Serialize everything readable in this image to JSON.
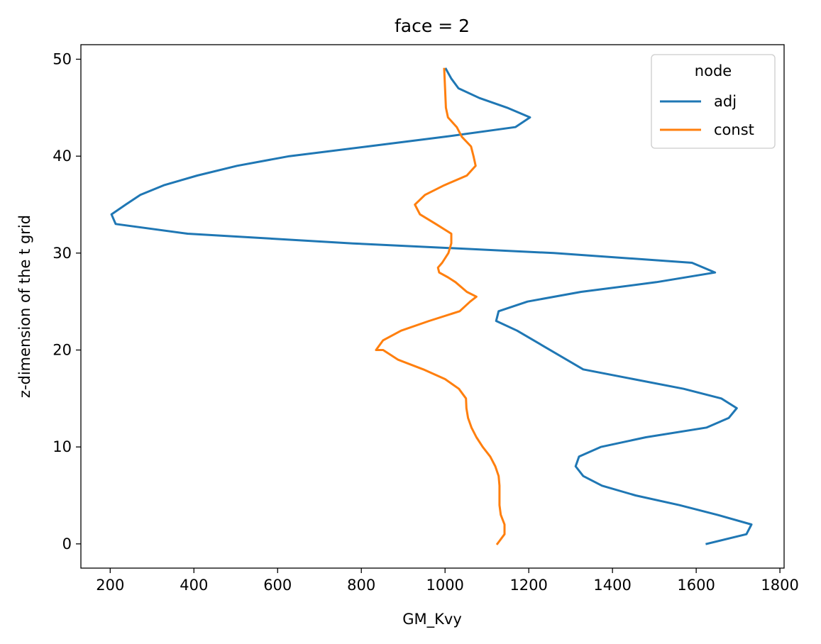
{
  "chart_data": {
    "type": "line",
    "title": "face = 2",
    "xlabel": "GM_Kvy",
    "ylabel": "z-dimension of the t grid",
    "xlim": [
      130,
      1810
    ],
    "ylim": [
      -2.5,
      51.5
    ],
    "xticks": [
      200,
      400,
      600,
      800,
      1000,
      1200,
      1400,
      1600,
      1800
    ],
    "yticks": [
      0,
      10,
      20,
      30,
      40,
      50
    ],
    "grid": false,
    "legend": {
      "title": "node",
      "placement": "top-right"
    },
    "series": [
      {
        "name": "adj",
        "color": "#1f77b4",
        "x": [
          1625,
          1720,
          1732,
          1650,
          1560,
          1455,
          1375,
          1330,
          1312,
          1320,
          1372,
          1480,
          1625,
          1678,
          1697,
          1660,
          1570,
          1450,
          1330,
          1172,
          1122,
          1128,
          1197,
          1325,
          1505,
          1645,
          1590,
          1260,
          780,
          385,
          213,
          203,
          237,
          272,
          328,
          408,
          503,
          628,
          815,
          1000,
          1168,
          1203,
          1148,
          1082,
          1032,
          1015,
          1002
        ],
        "y": [
          0,
          1,
          2,
          3,
          4,
          5,
          6,
          7,
          8,
          9,
          10,
          11,
          12,
          13,
          14,
          15,
          16,
          17,
          18,
          22,
          23,
          24,
          25,
          26,
          27,
          28,
          29,
          30,
          31,
          32,
          33,
          34,
          35,
          36,
          37,
          38,
          39,
          40,
          41,
          42,
          43,
          44,
          45,
          46,
          47,
          48,
          49
        ]
      },
      {
        "name": "const",
        "color": "#ff7f0e",
        "x": [
          1125,
          1142,
          1142,
          1133,
          1130,
          1130,
          1130,
          1128,
          1120,
          1108,
          1090,
          1075,
          1063,
          1055,
          1051,
          1050,
          1033,
          1000,
          948,
          888,
          852,
          835,
          852,
          895,
          962,
          1035,
          1060,
          1075,
          1052,
          1025,
          1007,
          986,
          983,
          993,
          1008,
          1015,
          1015,
          978,
          940,
          928,
          952,
          998,
          1052,
          1073,
          1068,
          1062,
          1040,
          1028,
          1007,
          1002,
          1000,
          999,
          998
        ],
        "y": [
          0,
          1,
          2,
          3,
          4,
          5,
          6,
          7,
          8,
          9,
          10,
          11,
          12,
          13,
          14,
          15,
          16,
          17,
          18,
          19,
          20,
          20,
          21,
          22,
          23,
          24,
          25,
          25.5,
          26,
          27,
          27.5,
          28,
          28.5,
          29,
          30,
          31,
          32,
          33,
          34,
          35,
          36,
          37,
          38,
          39,
          40,
          41,
          42,
          43,
          44,
          45,
          47,
          48,
          49
        ]
      }
    ]
  }
}
